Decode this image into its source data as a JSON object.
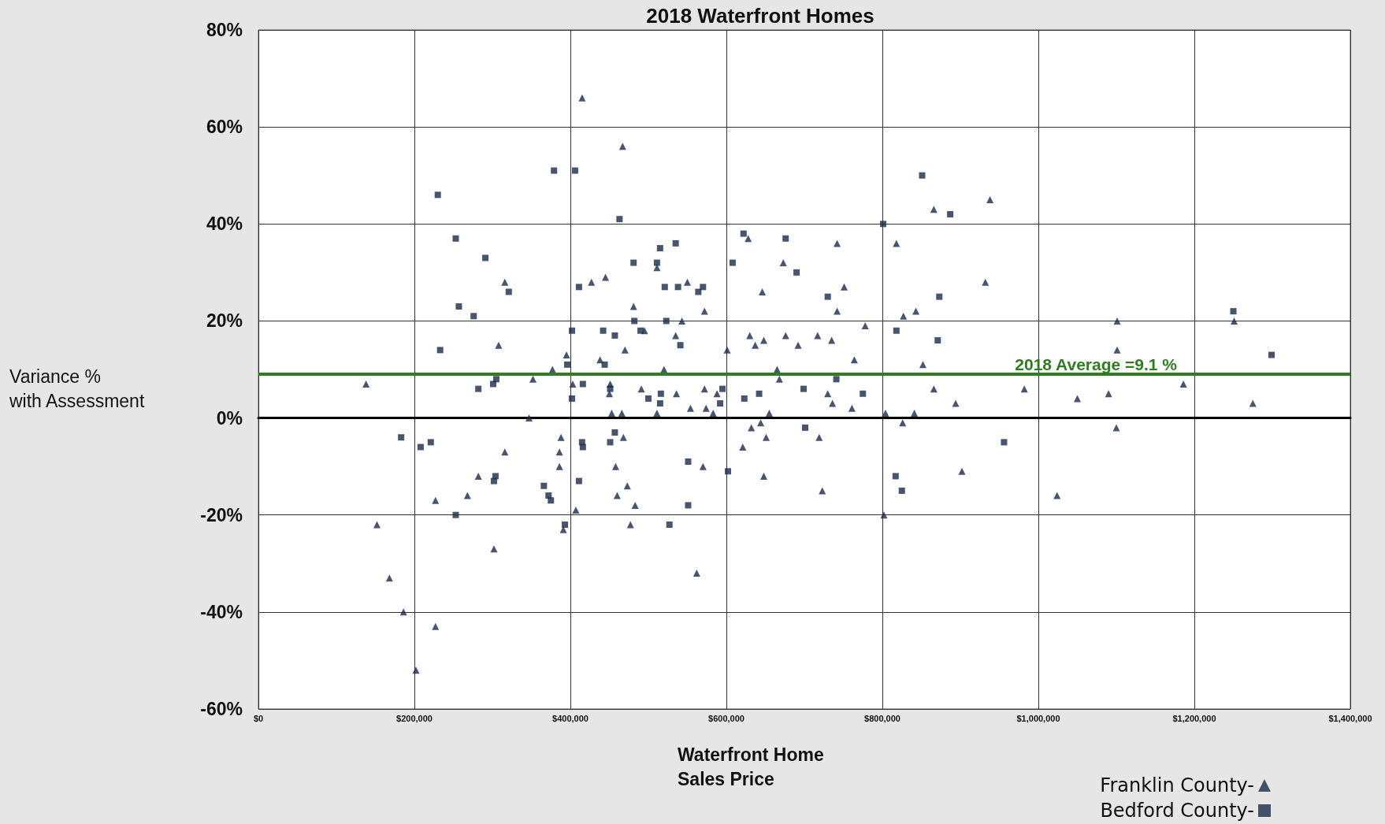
{
  "chart_data": {
    "type": "scatter",
    "title": "2018 Waterfront Homes",
    "xlabel": "Waterfront Home\nSales Price",
    "ylabel": "Variance %\nwith Assessment",
    "xlim": [
      0,
      1400000
    ],
    "xticks": [
      {
        "value": 0,
        "label": "$0"
      },
      {
        "value": 200000,
        "label": "$200,000"
      },
      {
        "value": 400000,
        "label": "$400,000"
      },
      {
        "value": 600000,
        "label": "$600,000"
      },
      {
        "value": 800000,
        "label": "$800,000"
      },
      {
        "value": 1000000,
        "label": "$1,000,000"
      },
      {
        "value": 1200000,
        "label": "$1,200,000"
      },
      {
        "value": 1400000,
        "label": "$1,400,000"
      }
    ],
    "ylim": [
      -60,
      80
    ],
    "yticks": [
      {
        "value": -60,
        "label": "-60%"
      },
      {
        "value": -40,
        "label": "-40%"
      },
      {
        "value": -20,
        "label": "-20%"
      },
      {
        "value": 0,
        "label": "0%"
      },
      {
        "value": 20,
        "label": "20%"
      },
      {
        "value": 40,
        "label": "40%"
      },
      {
        "value": 60,
        "label": "60%"
      },
      {
        "value": 80,
        "label": "80%"
      }
    ],
    "grid": true,
    "legend": "bottom right",
    "ref_lines": [
      {
        "axis": "y",
        "value": 9.1,
        "label": "2018 Average =9.1 %",
        "color": "#2e7d1e"
      }
    ],
    "series": [
      {
        "name": "Franklin County-",
        "color": "#1a2a4a",
        "marker": "triangle",
        "x": [
          138000,
          152000,
          168000,
          186000,
          202000,
          227000,
          227000,
          268000,
          282000,
          302000,
          308000,
          316000,
          316000,
          352000,
          347000,
          377000,
          388000,
          386000,
          386000,
          391000,
          395000,
          403000,
          407000,
          415000,
          427000,
          445000,
          438000,
          450000,
          453000,
          451000,
          466000,
          467000,
          458000,
          460000,
          468000,
          470000,
          473000,
          477000,
          481000,
          483000,
          491000,
          495000,
          511000,
          511000,
          520000,
          535000,
          536000,
          543000,
          550000,
          554000,
          562000,
          570000,
          572000,
          572000,
          574000,
          583000,
          588000,
          601000,
          621000,
          628000,
          630000,
          632000,
          637000,
          646000,
          644000,
          648000,
          651000,
          655000,
          648000,
          665000,
          668000,
          673000,
          676000,
          692000,
          717000,
          719000,
          723000,
          730000,
          735000,
          736000,
          742000,
          742000,
          751000,
          761000,
          764000,
          778000,
          802000,
          804000,
          818000,
          826000,
          827000,
          841000,
          843000,
          852000,
          866000,
          866000,
          894000,
          902000,
          932000,
          938000,
          982000,
          1024000,
          1050000,
          1090000,
          1101000,
          1101000,
          1100000,
          1186000,
          1251000,
          1275000
        ],
        "values": [
          7,
          -22,
          -33,
          -40,
          -52,
          -43,
          -17,
          -16,
          -12,
          -27,
          15,
          28,
          -7,
          8,
          0,
          10,
          -4,
          -7,
          -10,
          -23,
          13,
          7,
          -19,
          66,
          28,
          29,
          12,
          5,
          1,
          7,
          1,
          56,
          -10,
          -16,
          -4,
          14,
          -14,
          -22,
          23,
          -18,
          6,
          18,
          31,
          1,
          10,
          17,
          5,
          20,
          28,
          2,
          -32,
          -10,
          6,
          22,
          2,
          1,
          5,
          14,
          -6,
          37,
          17,
          -2,
          15,
          26,
          -1,
          16,
          -4,
          1,
          -12,
          10,
          8,
          32,
          17,
          15,
          17,
          -4,
          -15,
          5,
          16,
          3,
          36,
          22,
          27,
          2,
          12,
          19,
          -20,
          1,
          36,
          -1,
          21,
          1,
          22,
          11,
          43,
          6,
          3,
          -11,
          28,
          45,
          6,
          -16,
          4,
          5,
          20,
          14,
          -2,
          7,
          20,
          3
        ]
      },
      {
        "name": "Bedford County-",
        "color": "#1a2a4a",
        "marker": "square",
        "x": [
          183000,
          208000,
          221000,
          230000,
          233000,
          253000,
          253000,
          257000,
          276000,
          282000,
          291000,
          301000,
          302000,
          304000,
          305000,
          321000,
          366000,
          372000,
          375000,
          379000,
          393000,
          396000,
          402000,
          402000,
          406000,
          411000,
          411000,
          415000,
          416000,
          416000,
          442000,
          444000,
          451000,
          457000,
          451000,
          457000,
          463000,
          481000,
          482000,
          490000,
          500000,
          511000,
          515000,
          515000,
          516000,
          521000,
          523000,
          527000,
          535000,
          538000,
          541000,
          551000,
          551000,
          564000,
          570000,
          595000,
          592000,
          602000,
          608000,
          622000,
          623000,
          642000,
          676000,
          690000,
          699000,
          701000,
          730000,
          741000,
          775000,
          801000,
          818000,
          817000,
          825000,
          851000,
          871000,
          873000,
          887000,
          956000,
          1250000,
          1299000
        ],
        "values": [
          -4,
          -6,
          -5,
          46,
          14,
          37,
          -20,
          23,
          21,
          6,
          33,
          7,
          -13,
          -12,
          8,
          26,
          -14,
          -16,
          -17,
          51,
          -22,
          11,
          18,
          4,
          51,
          27,
          -13,
          -5,
          -6,
          7,
          18,
          11,
          6,
          17,
          -5,
          -3,
          41,
          32,
          20,
          18,
          4,
          32,
          35,
          3,
          5,
          27,
          20,
          -22,
          36,
          27,
          15,
          -9,
          -18,
          26,
          27,
          6,
          3,
          -11,
          32,
          38,
          4,
          5,
          37,
          30,
          6,
          -2,
          25,
          8,
          5,
          40,
          18,
          -12,
          -15,
          50,
          16,
          25,
          42,
          -5,
          22,
          13
        ]
      }
    ]
  }
}
